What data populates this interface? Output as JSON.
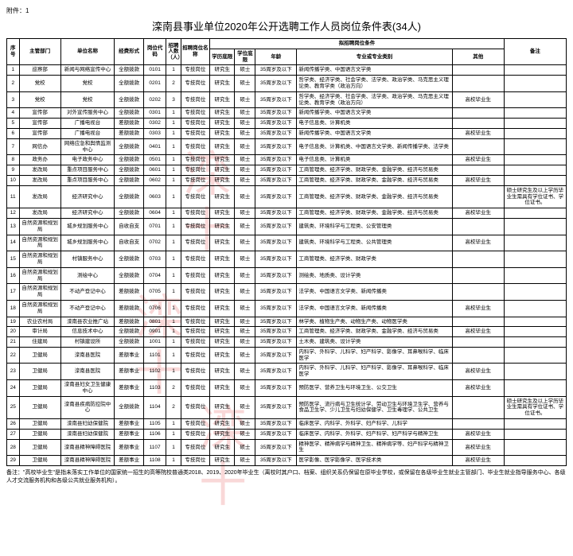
{
  "attachment": "附件：1",
  "title": "滦南县事业单位2020年公开选聘工作人员岗位条件表(34人)",
  "headers": {
    "seq": "序号",
    "dept": "主管部门",
    "unit": "单位名称",
    "fund": "经费形式",
    "code": "岗位代码",
    "num": "招聘人数（人）",
    "pos": "招聘岗位名称",
    "cond": "拟招聘岗位条件",
    "edu": "学历底限",
    "deg": "学位底限",
    "age": "年龄",
    "major": "专业或专业类别",
    "other": "其他",
    "remark": "备注"
  },
  "rows": [
    {
      "seq": "1",
      "dept": "巡察部",
      "unit": "新闻与网络宣传中心",
      "fund": "全额拨款",
      "code": "0101",
      "num": "1",
      "pos": "专技岗位",
      "edu": "研究生",
      "deg": "硕士",
      "age": "35周岁及以下",
      "major": "新闻传播学类、中国语言文学类",
      "other": "",
      "remark": ""
    },
    {
      "seq": "2",
      "dept": "党校",
      "unit": "党校",
      "fund": "全额拨款",
      "code": "0201",
      "num": "2",
      "pos": "专技岗位",
      "edu": "研究生",
      "deg": "硕士",
      "age": "35周岁及以下",
      "major": "哲学类、经济学类、社会学类、法学类、政治学类、马克思主义理论类、教育学类（政治方向）",
      "other": "",
      "remark": ""
    },
    {
      "seq": "3",
      "dept": "党校",
      "unit": "党校",
      "fund": "全额拨款",
      "code": "0202",
      "num": "3",
      "pos": "专技岗位",
      "edu": "研究生",
      "deg": "硕士",
      "age": "35周岁及以下",
      "major": "哲学类、经济学类、社会学类、法学类、政治学类、马克思主义理论类、教育学类（政治方向）",
      "other": "高校毕业生",
      "remark": ""
    },
    {
      "seq": "4",
      "dept": "宣传部",
      "unit": "对外宣传服务中心",
      "fund": "全额拨款",
      "code": "0301",
      "num": "1",
      "pos": "专技岗位",
      "edu": "研究生",
      "deg": "硕士",
      "age": "35周岁及以下",
      "major": "新闻传播学类、中国语言文学类",
      "other": "",
      "remark": ""
    },
    {
      "seq": "5",
      "dept": "宣传部",
      "unit": "广播电视台",
      "fund": "差额拨款",
      "code": "0302",
      "num": "1",
      "pos": "专技岗位",
      "edu": "研究生",
      "deg": "硕士",
      "age": "35周岁及以下",
      "major": "电子信息类、计算机类",
      "other": "",
      "remark": ""
    },
    {
      "seq": "6",
      "dept": "宣传部",
      "unit": "广播电视台",
      "fund": "差额拨款",
      "code": "0303",
      "num": "1",
      "pos": "专技岗位",
      "edu": "研究生",
      "deg": "硕士",
      "age": "35周岁及以下",
      "major": "新闻传播学类、中国语言文学类",
      "other": "高校毕业生",
      "remark": ""
    },
    {
      "seq": "7",
      "dept": "网信办",
      "unit": "网络应急和舆情监测中心",
      "fund": "全额拨款",
      "code": "0401",
      "num": "1",
      "pos": "专技岗位",
      "edu": "研究生",
      "deg": "硕士",
      "age": "35周岁及以下",
      "major": "电子信息类、计算机类、中国语言文学类、新闻传播学类、法学类",
      "other": "",
      "remark": ""
    },
    {
      "seq": "8",
      "dept": "政务办",
      "unit": "电子政务中心",
      "fund": "全额拨款",
      "code": "0501",
      "num": "1",
      "pos": "专技岗位",
      "edu": "研究生",
      "deg": "硕士",
      "age": "35周岁及以下",
      "major": "电子信息类、计算机类",
      "other": "高校毕业生",
      "remark": ""
    },
    {
      "seq": "9",
      "dept": "发改局",
      "unit": "重点项目服务中心",
      "fund": "全额拨款",
      "code": "0601",
      "num": "1",
      "pos": "专技岗位",
      "edu": "研究生",
      "deg": "硕士",
      "age": "35周岁及以下",
      "major": "工商管理类、经济学类、财政学类、金融学类、经济与贸易类",
      "other": "",
      "remark": ""
    },
    {
      "seq": "10",
      "dept": "发改局",
      "unit": "重点项目服务中心",
      "fund": "全额拨款",
      "code": "0602",
      "num": "1",
      "pos": "专技岗位",
      "edu": "研究生",
      "deg": "硕士",
      "age": "35周岁及以下",
      "major": "工商管理类、经济学类、财政学类、金融学类、经济与贸易类",
      "other": "高校毕业生",
      "remark": ""
    },
    {
      "seq": "11",
      "dept": "发改局",
      "unit": "经济研究中心",
      "fund": "全额拨款",
      "code": "0603",
      "num": "1",
      "pos": "专技岗位",
      "edu": "研究生",
      "deg": "硕士",
      "age": "35周岁及以下",
      "major": "工商管理类、经济学类、财政学类、金融学类、经济与贸易类",
      "other": "",
      "remark": "硕士研究生及以上学历毕业生需具有学位证书、学位证书。"
    },
    {
      "seq": "12",
      "dept": "发改局",
      "unit": "经济研究中心",
      "fund": "全额拨款",
      "code": "0604",
      "num": "1",
      "pos": "专技岗位",
      "edu": "研究生",
      "deg": "硕士",
      "age": "35周岁及以下",
      "major": "工商管理类、经济学类、财政学类、金融学类、经济与贸易类",
      "other": "高校毕业生",
      "remark": ""
    },
    {
      "seq": "13",
      "dept": "自然资源和规划局",
      "unit": "城乡规划服务中心",
      "fund": "自收自支",
      "code": "0701",
      "num": "1",
      "pos": "专技岗位",
      "edu": "研究生",
      "deg": "硕士",
      "age": "35周岁及以下",
      "major": "建筑类、环境科学与工程类、公安管理类",
      "other": "",
      "remark": ""
    },
    {
      "seq": "14",
      "dept": "自然资源和规划局",
      "unit": "城乡规划服务中心",
      "fund": "自收自支",
      "code": "0702",
      "num": "1",
      "pos": "专技岗位",
      "edu": "研究生",
      "deg": "硕士",
      "age": "35周岁及以下",
      "major": "建筑类、环境科学与工程类、公共管理类",
      "other": "高校毕业生",
      "remark": ""
    },
    {
      "seq": "15",
      "dept": "自然资源和规划局",
      "unit": "村镇服务中心",
      "fund": "全额拨款",
      "code": "0703",
      "num": "1",
      "pos": "专技岗位",
      "edu": "研究生",
      "deg": "硕士",
      "age": "35周岁及以下",
      "major": "工商管理类、经济学类、财政学类",
      "other": "",
      "remark": ""
    },
    {
      "seq": "16",
      "dept": "自然资源和规划局",
      "unit": "测绘中心",
      "fund": "全额拨款",
      "code": "0704",
      "num": "1",
      "pos": "专技岗位",
      "edu": "研究生",
      "deg": "硕士",
      "age": "35周岁及以下",
      "major": "测绘类、地质类、设计学类",
      "other": "",
      "remark": ""
    },
    {
      "seq": "17",
      "dept": "自然资源和规划局",
      "unit": "不动产登记中心",
      "fund": "差额拨款",
      "code": "0705",
      "num": "1",
      "pos": "专技岗位",
      "edu": "研究生",
      "deg": "硕士",
      "age": "35周岁及以下",
      "major": "法学类、中国语言文学类、新闻传播类",
      "other": "",
      "remark": ""
    },
    {
      "seq": "18",
      "dept": "自然资源和规划局",
      "unit": "不动产登记中心",
      "fund": "差额拨款",
      "code": "0706",
      "num": "1",
      "pos": "专技岗位",
      "edu": "研究生",
      "deg": "硕士",
      "age": "35周岁及以下",
      "major": "法学类、中国语言文学类、新闻传播类",
      "other": "高校毕业生",
      "remark": ""
    },
    {
      "seq": "19",
      "dept": "农业农村局",
      "unit": "滦南县农业推广站",
      "fund": "差额拨款",
      "code": "0801",
      "num": "1",
      "pos": "专技岗位",
      "edu": "研究生",
      "deg": "硕士",
      "age": "35周岁及以下",
      "major": "林学类、植物生产类、动物生产类、动物医学类",
      "other": "",
      "remark": ""
    },
    {
      "seq": "20",
      "dept": "审计局",
      "unit": "信息技术中心",
      "fund": "全额拨款",
      "code": "0901",
      "num": "1",
      "pos": "专技岗位",
      "edu": "研究生",
      "deg": "硕士",
      "age": "35周岁及以下",
      "major": "工商管理类、经济学类、财政学类、金融学类、经济与贸易类",
      "other": "高校毕业生",
      "remark": ""
    },
    {
      "seq": "21",
      "dept": "住建局",
      "unit": "村镇建设所",
      "fund": "全额拨款",
      "code": "1001",
      "num": "1",
      "pos": "专技岗位",
      "edu": "研究生",
      "deg": "硕士",
      "age": "35周岁及以下",
      "major": "土木类、建筑类、设计学类",
      "other": "",
      "remark": ""
    },
    {
      "seq": "22",
      "dept": "卫健局",
      "unit": "滦南县医院",
      "fund": "差额事业",
      "code": "1101",
      "num": "1",
      "pos": "专技岗位",
      "edu": "研究生",
      "deg": "硕士",
      "age": "35周岁及以下",
      "major": "内科学、外科学、儿科学、妇产科学、影像学、耳鼻喉科学、临床医学",
      "other": "",
      "remark": ""
    },
    {
      "seq": "23",
      "dept": "卫健局",
      "unit": "滦南县医院",
      "fund": "差额事业",
      "code": "1102",
      "num": "1",
      "pos": "专技岗位",
      "edu": "研究生",
      "deg": "硕士",
      "age": "35周岁及以下",
      "major": "内科学、外科学、儿科学、妇产科学、影像学、耳鼻喉科学、临床医学",
      "other": "高校毕业生",
      "remark": ""
    },
    {
      "seq": "24",
      "dept": "卫健局",
      "unit": "滦南县妇女卫生健康中心",
      "fund": "差额事业",
      "code": "1103",
      "num": "2",
      "pos": "专技岗位",
      "edu": "研究生",
      "deg": "硕士",
      "age": "35周岁及以下",
      "major": "预防医学、营养卫生与环境卫生、公交卫生",
      "other": "高校毕业生",
      "remark": ""
    },
    {
      "seq": "25",
      "dept": "卫健局",
      "unit": "滦南县疾病防控院中心",
      "fund": "全额拨款",
      "code": "1104",
      "num": "2",
      "pos": "专技岗位",
      "edu": "研究生",
      "deg": "硕士",
      "age": "35周岁及以下",
      "major": "预防医学、流行病与卫生统计学、劳动卫生与环境卫生学、营养与食品卫生学、少儿卫生与妇幼保健学、卫生毒理学、公共卫生",
      "other": "",
      "remark": "硕士研究生及以上学历毕业生需具有学位证书、学位证书。"
    },
    {
      "seq": "26",
      "dept": "卫健局",
      "unit": "滦南县妇幼保健院",
      "fund": "差额事业",
      "code": "1105",
      "num": "1",
      "pos": "专技岗位",
      "edu": "研究生",
      "deg": "硕士",
      "age": "35周岁及以下",
      "major": "临床医学、内科学、外科学、妇产科学、儿科学",
      "other": "",
      "remark": ""
    },
    {
      "seq": "27",
      "dept": "卫健局",
      "unit": "滦南县妇幼保健院",
      "fund": "差额事业",
      "code": "1106",
      "num": "1",
      "pos": "专技岗位",
      "edu": "研究生",
      "deg": "硕士",
      "age": "35周岁及以下",
      "major": "临床医学、内科学、外科学、妇产科学、妇产科学与精神卫生",
      "other": "高校毕业生",
      "remark": ""
    },
    {
      "seq": "28",
      "dept": "卫健局",
      "unit": "滦南县精神障碍医院",
      "fund": "差额事业",
      "code": "1107",
      "num": "1",
      "pos": "专技岗位",
      "edu": "研究生",
      "deg": "硕士",
      "age": "35周岁及以下",
      "major": "精神医学、精神病学与精神卫生、精神病学等、妇产科学与精神卫生",
      "other": "高校毕业生",
      "remark": ""
    },
    {
      "seq": "29",
      "dept": "卫健局",
      "unit": "滦南县精神障碍医院",
      "fund": "差额事业",
      "code": "1108",
      "num": "1",
      "pos": "专技岗位",
      "edu": "研究生",
      "deg": "硕士",
      "age": "35周岁及以下",
      "major": "医学影像、医学影像学、医学技术类",
      "other": "高校毕业生",
      "remark": ""
    }
  ],
  "note": "备注：\"高校毕业生\"是指未落实工作单位的国家统一招生的高等院校普通类2018、2019、2020年毕业生（离校时其户口、档案、组织关系仍保留在原毕业学校，或保留在各级毕业生就业主管部门、毕业生就业指导服务中心、各级人才交流服务机构和各级公共就业服务机构）。",
  "style": {
    "bg": "#ffffff",
    "border": "#000000",
    "watermark_color": "#dd0000",
    "title_fontsize": 13,
    "cell_fontsize": 6.5
  }
}
